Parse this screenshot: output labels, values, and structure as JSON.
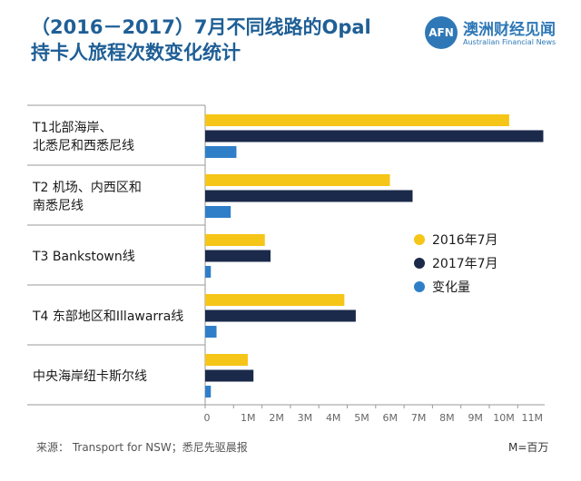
{
  "title": {
    "line1": "（2016－2017）7月不同线路的Opal",
    "line2": "持卡人旅程次数变化统计"
  },
  "brand": {
    "logo_text": "AFN",
    "name_cn": "澳洲财经见闻",
    "name_en": "Australian Financial News"
  },
  "source_text": "来源：  Transport for NSW；悉尼先驱晨报",
  "unit_text": "M=百万",
  "colors": {
    "2016": "#f5c518",
    "2017": "#1b2a4a",
    "change": "#2f7fc8",
    "title": "#1f5f96",
    "axis": "#666666"
  },
  "chart_data": {
    "type": "bar",
    "orientation": "horizontal",
    "categories": [
      [
        "T1北部海岸、",
        "北悉尼和西悉尼线"
      ],
      [
        "T2 机场、内西区和",
        "南悉尼线"
      ],
      [
        "T3 Bankstown线"
      ],
      [
        "T4 东部地区和Illawarra线"
      ],
      [
        "中央海岸纽卡斯尔线"
      ]
    ],
    "series": [
      {
        "name": "2016年7月",
        "color": "#f5c518",
        "values": [
          10.7,
          6.5,
          2.1,
          4.9,
          1.5
        ]
      },
      {
        "name": "2017年7月",
        "color": "#1b2a4a",
        "values": [
          11.9,
          7.3,
          2.3,
          5.3,
          1.7
        ]
      },
      {
        "name": "变化量",
        "color": "#2f7fc8",
        "values": [
          1.1,
          0.9,
          0.2,
          0.4,
          0.2
        ]
      }
    ],
    "x_ticks": [
      "0",
      "1M",
      "2M",
      "3M",
      "4M",
      "5M",
      "6M",
      "7M",
      "8M",
      "9M",
      "10M",
      "11M"
    ],
    "xlim": [
      0,
      12
    ],
    "legend_position": "right"
  }
}
